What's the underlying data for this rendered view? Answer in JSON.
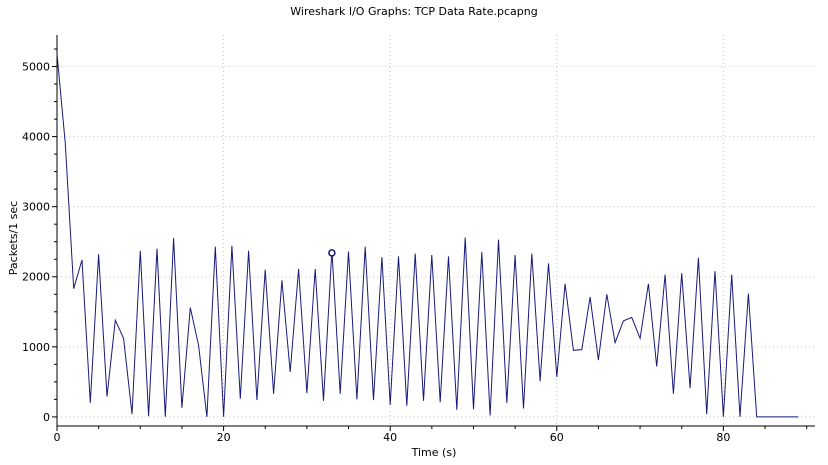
{
  "chart_data": {
    "type": "line",
    "title": "Wireshark I/O Graphs: TCP Data Rate.pcapng",
    "xlabel": "Time (s)",
    "ylabel": "Packets/1 sec",
    "xlim": [
      0,
      91
    ],
    "ylim": [
      -130,
      5450
    ],
    "x_ticks": [
      0,
      20,
      40,
      60,
      80
    ],
    "y_ticks": [
      0,
      1000,
      2000,
      3000,
      4000,
      5000
    ],
    "grid": true,
    "line_color": "#1a1a7a",
    "series": [
      {
        "x": [
          0,
          1,
          2,
          3,
          4,
          5,
          6,
          7,
          8,
          9,
          10,
          11,
          12,
          13,
          14,
          15,
          16,
          17,
          18,
          19,
          20,
          21,
          22,
          23,
          24,
          25,
          26,
          27,
          28,
          29,
          30,
          31,
          32,
          33,
          34,
          35,
          36,
          37,
          38,
          39,
          40,
          41,
          42,
          43,
          44,
          45,
          46,
          47,
          48,
          49,
          50,
          51,
          52,
          53,
          54,
          55,
          56,
          57,
          58,
          59,
          60,
          61,
          62,
          63,
          64,
          65,
          66,
          67,
          68,
          69,
          70,
          71,
          72,
          73,
          74,
          75,
          76,
          77,
          78,
          79,
          80,
          81,
          82,
          83,
          84,
          85,
          86,
          87,
          88,
          89
        ],
        "values": [
          5180,
          3900,
          1830,
          2240,
          200,
          2320,
          290,
          1380,
          1120,
          40,
          2370,
          10,
          2400,
          0,
          2550,
          130,
          1560,
          1020,
          0,
          2430,
          0,
          2440,
          260,
          2370,
          240,
          2100,
          330,
          1950,
          640,
          2110,
          340,
          2110,
          230,
          2380,
          330,
          2360,
          250,
          2430,
          240,
          2280,
          170,
          2290,
          160,
          2330,
          230,
          2310,
          210,
          2290,
          100,
          2560,
          110,
          2350,
          20,
          2530,
          200,
          2310,
          120,
          2330,
          510,
          2190,
          570,
          1900,
          950,
          960,
          1710,
          810,
          1750,
          1060,
          1370,
          1420,
          1120,
          1900,
          720,
          2030,
          330,
          2050,
          410,
          2270,
          40,
          2080,
          0,
          2030,
          0,
          1760,
          0,
          0,
          0,
          0,
          0,
          0
        ]
      }
    ],
    "marker": {
      "x": 33,
      "y": 2340
    }
  }
}
